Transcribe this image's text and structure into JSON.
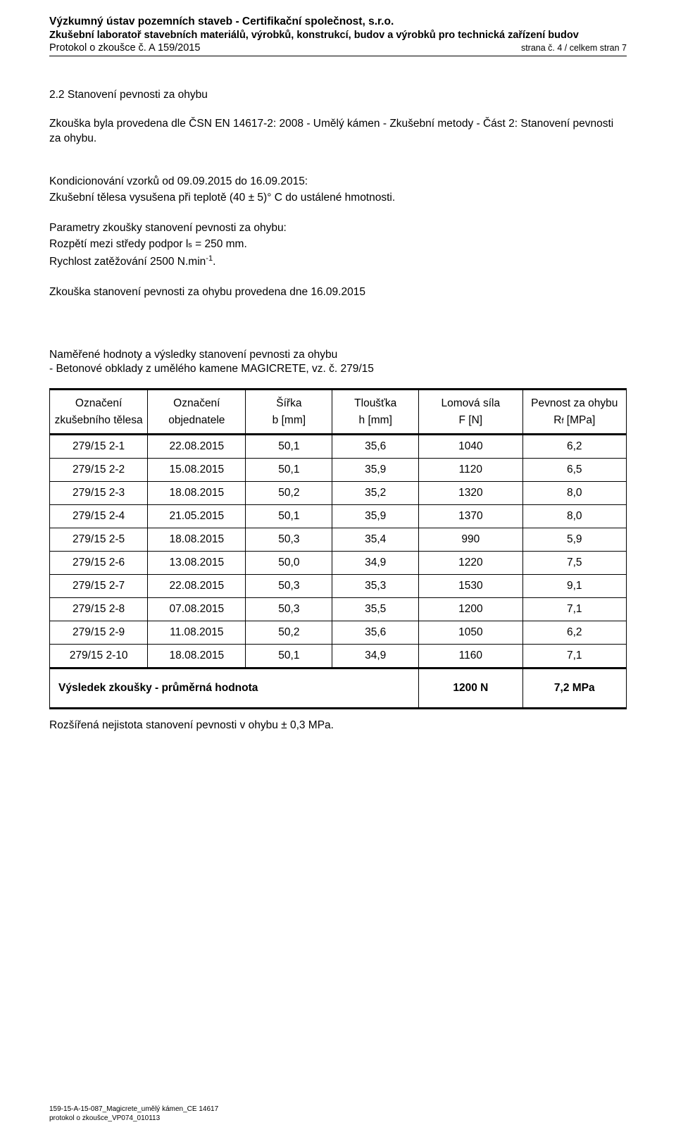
{
  "header": {
    "org": "Výzkumný ústav pozemních staveb - Certifikační společnost, s.r.o.",
    "lab": "Zkušební laboratoř stavebních materiálů, výrobků, konstrukcí, budov a výrobků pro technická zařízení budov",
    "protocol": "Protokol o zkoušce č. A 159/2015",
    "page": "strana č. 4 / celkem stran 7"
  },
  "section": {
    "title": "2.2  Stanovení pevnosti za ohybu",
    "intro": "Zkouška byla provedena dle ČSN EN 14617-2: 2008 - Umělý kámen - Zkušební metody - Část 2: Stanovení pevnosti za ohybu.",
    "cond": "Kondicionování vzorků od 09.09.2015 do 16.09.2015:",
    "cond2": "Zkušební tělesa vysušena při teplotě (40 ± 5)° C do ustálené hmotnosti.",
    "params1": "Parametry zkoušky stanovení pevnosti za ohybu:",
    "params2_a": "Rozpětí mezi středy podpor l",
    "params2_sub": "s",
    "params2_b": " = 250 mm.",
    "params3_a": "Rychlost zatěžování 2500 N.min",
    "params3_sup": "-1",
    "params3_b": ".",
    "done": "Zkouška stanovení pevnosti za ohybu provedena dne 16.09.2015"
  },
  "results": {
    "title1": "Naměřené hodnoty a výsledky stanovení pevnosti za ohybu",
    "title2": "- Betonové obklady z umělého kamene MAGICRETE, vz. č. 279/15"
  },
  "table": {
    "headers": {
      "oz": "Označení zkušebního tělesa",
      "obj": "Označení objednatele",
      "s1": "Šířka",
      "s2": "b [mm]",
      "t1": "Tloušťka",
      "t2": "h [mm]",
      "f1": "Lomová síla",
      "f2": "F [N]",
      "r1": "Pevnost za ohybu",
      "r2_a": "R",
      "r2_sub": "f",
      "r2_b": " [MPa]"
    },
    "rows": [
      {
        "oz": "279/15 2-1",
        "obj": "22.08.2015",
        "s": "50,1",
        "t": "35,6",
        "f": "1040",
        "r": "6,2"
      },
      {
        "oz": "279/15 2-2",
        "obj": "15.08.2015",
        "s": "50,1",
        "t": "35,9",
        "f": "1120",
        "r": "6,5"
      },
      {
        "oz": "279/15 2-3",
        "obj": "18.08.2015",
        "s": "50,2",
        "t": "35,2",
        "f": "1320",
        "r": "8,0"
      },
      {
        "oz": "279/15 2-4",
        "obj": "21.05.2015",
        "s": "50,1",
        "t": "35,9",
        "f": "1370",
        "r": "8,0"
      },
      {
        "oz": "279/15 2-5",
        "obj": "18.08.2015",
        "s": "50,3",
        "t": "35,4",
        "f": "990",
        "r": "5,9"
      },
      {
        "oz": "279/15 2-6",
        "obj": "13.08.2015",
        "s": "50,0",
        "t": "34,9",
        "f": "1220",
        "r": "7,5"
      },
      {
        "oz": "279/15 2-7",
        "obj": "22.08.2015",
        "s": "50,3",
        "t": "35,3",
        "f": "1530",
        "r": "9,1"
      },
      {
        "oz": "279/15 2-8",
        "obj": "07.08.2015",
        "s": "50,3",
        "t": "35,5",
        "f": "1200",
        "r": "7,1"
      },
      {
        "oz": "279/15 2-9",
        "obj": "11.08.2015",
        "s": "50,2",
        "t": "35,6",
        "f": "1050",
        "r": "6,2"
      },
      {
        "oz": "279/15 2-10",
        "obj": "18.08.2015",
        "s": "50,1",
        "t": "34,9",
        "f": "1160",
        "r": "7,1"
      }
    ],
    "summary": {
      "label": "Výsledek zkoušky - průměrná hodnota",
      "f": "1200 N",
      "r": "7,2 MPa"
    }
  },
  "footnote": "Rozšířená nejistota stanovení pevnosti v ohybu ± 0,3 MPa.",
  "footer": {
    "l1": "159-15-A-15-087_Magicrete_umělý kámen_CE 14617",
    "l2": "protokol o zkoušce_VP074_010113"
  }
}
